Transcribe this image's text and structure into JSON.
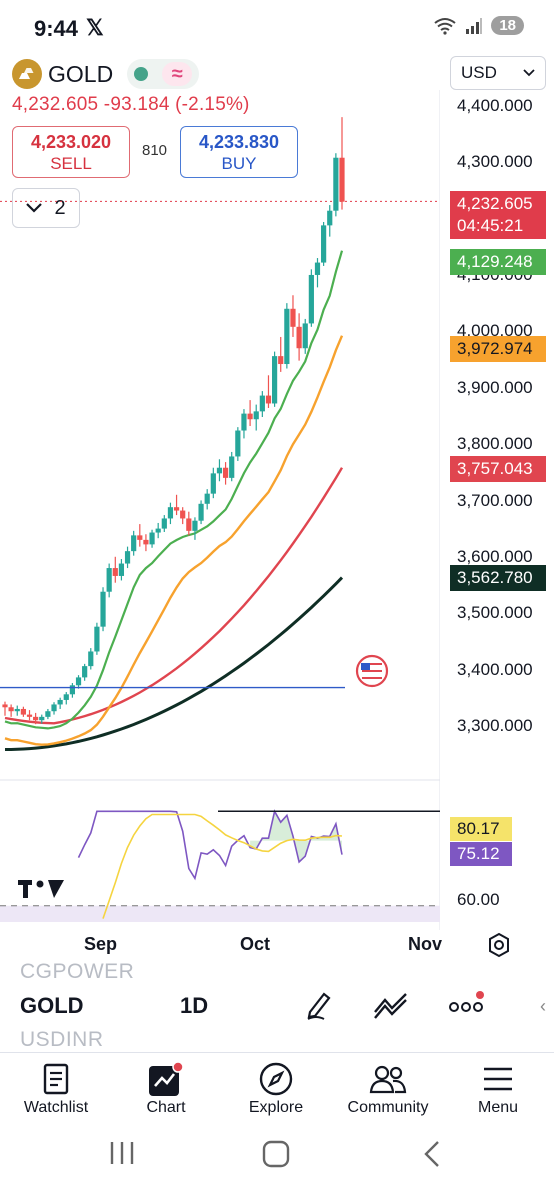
{
  "status": {
    "time": "9:44",
    "notification_count": "18",
    "network": "5"
  },
  "symbol": {
    "name": "GOLD",
    "wave_glyph": "≈"
  },
  "change_line": "4,232.605 -93.184 (-2.15%)",
  "trade": {
    "sell_price": "4,233.020",
    "sell_label": "SELL",
    "buy_price": "4,233.830",
    "buy_label": "BUY",
    "spread": "810"
  },
  "layers": {
    "count": "2"
  },
  "currency": {
    "selected": "USD"
  },
  "price_axis": {
    "ticks": [
      "4,400.000",
      "4,300.000",
      "4,100.000",
      "4,000.000",
      "3,900.000",
      "3,800.000",
      "3,700.000",
      "3,600.000",
      "3,500.000",
      "3,400.000",
      "3,300.000"
    ]
  },
  "price_tags": {
    "last_price": "4,232.605",
    "countdown": "04:45:21",
    "ma1": "4,129.248",
    "ma2": "3,972.974",
    "ma3": "3,757.043",
    "ma4": "3,562.780"
  },
  "colors": {
    "up": "#26a69a",
    "down": "#ef5350",
    "ma_green": "#4caf50",
    "ma_orange": "#f7a22e",
    "ma_red": "#e0454f",
    "ma_dark": "#0f2e25",
    "rsi": "#7e57c2",
    "rsi_ma": "#f5d440"
  },
  "rsi": {
    "value_ma": "80.17",
    "value": "75.12",
    "level": "60.00"
  },
  "time_axis": {
    "sep": "Sep",
    "oct": "Oct",
    "nov": "Nov"
  },
  "watchlist_peek": {
    "prev": "CGPOWER",
    "next": "USDINR"
  },
  "toolbar": {
    "symbol": "GOLD",
    "interval": "1D"
  },
  "nav": {
    "watchlist": "Watchlist",
    "chart": "Chart",
    "explore": "Explore",
    "community": "Community",
    "menu": "Menu"
  },
  "chart_data": {
    "type": "candlestick",
    "price_range": [
      3250,
      4430
    ],
    "candles": [
      [
        3340,
        3345,
        3320,
        3335
      ],
      [
        3335,
        3340,
        3318,
        3328
      ],
      [
        3328,
        3338,
        3320,
        3332
      ],
      [
        3332,
        3336,
        3318,
        3322
      ],
      [
        3322,
        3330,
        3312,
        3318
      ],
      [
        3318,
        3325,
        3305,
        3312
      ],
      [
        3312,
        3322,
        3306,
        3318
      ],
      [
        3318,
        3332,
        3314,
        3328
      ],
      [
        3328,
        3344,
        3322,
        3340
      ],
      [
        3340,
        3352,
        3332,
        3348
      ],
      [
        3348,
        3362,
        3340,
        3358
      ],
      [
        3358,
        3378,
        3352,
        3374
      ],
      [
        3374,
        3392,
        3368,
        3388
      ],
      [
        3388,
        3412,
        3382,
        3408
      ],
      [
        3408,
        3440,
        3402,
        3434
      ],
      [
        3434,
        3485,
        3428,
        3478
      ],
      [
        3478,
        3548,
        3470,
        3540
      ],
      [
        3540,
        3590,
        3530,
        3582
      ],
      [
        3582,
        3602,
        3556,
        3568
      ],
      [
        3568,
        3598,
        3560,
        3590
      ],
      [
        3590,
        3620,
        3582,
        3612
      ],
      [
        3612,
        3648,
        3604,
        3640
      ],
      [
        3640,
        3660,
        3620,
        3632
      ],
      [
        3632,
        3642,
        3612,
        3624
      ],
      [
        3624,
        3650,
        3618,
        3645
      ],
      [
        3645,
        3662,
        3635,
        3652
      ],
      [
        3652,
        3676,
        3646,
        3670
      ],
      [
        3670,
        3698,
        3660,
        3690
      ],
      [
        3690,
        3712,
        3676,
        3684
      ],
      [
        3684,
        3690,
        3660,
        3670
      ],
      [
        3670,
        3682,
        3640,
        3648
      ],
      [
        3648,
        3672,
        3632,
        3666
      ],
      [
        3666,
        3702,
        3660,
        3696
      ],
      [
        3696,
        3722,
        3686,
        3714
      ],
      [
        3714,
        3760,
        3706,
        3750
      ],
      [
        3750,
        3775,
        3736,
        3760
      ],
      [
        3760,
        3770,
        3730,
        3742
      ],
      [
        3742,
        3788,
        3736,
        3780
      ],
      [
        3780,
        3832,
        3772,
        3826
      ],
      [
        3826,
        3864,
        3812,
        3856
      ],
      [
        3856,
        3880,
        3834,
        3846
      ],
      [
        3846,
        3872,
        3826,
        3860
      ],
      [
        3860,
        3896,
        3850,
        3888
      ],
      [
        3888,
        3924,
        3866,
        3874
      ],
      [
        3874,
        3966,
        3868,
        3958
      ],
      [
        3958,
        3992,
        3930,
        3944
      ],
      [
        3944,
        4052,
        3936,
        4042
      ],
      [
        4042,
        4066,
        3992,
        4010
      ],
      [
        4010,
        4034,
        3950,
        3972
      ],
      [
        3972,
        4024,
        3962,
        4016
      ],
      [
        4016,
        4112,
        4010,
        4102
      ],
      [
        4102,
        4132,
        4080,
        4124
      ],
      [
        4124,
        4196,
        4118,
        4190
      ],
      [
        4190,
        4226,
        4170,
        4216
      ],
      [
        4216,
        4318,
        4206,
        4310
      ],
      [
        4310,
        4382,
        4218,
        4232
      ]
    ],
    "rsi_range": [
      55,
      90
    ]
  }
}
